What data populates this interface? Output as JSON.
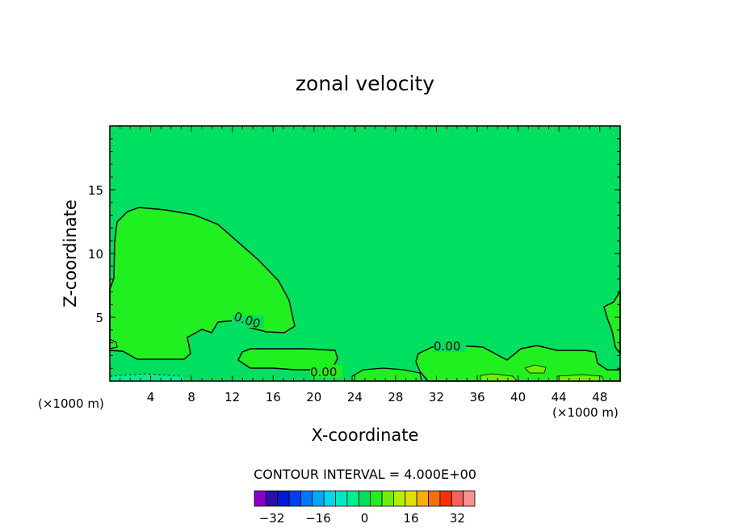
{
  "chart_data": {
    "type": "contour",
    "title": "zonal velocity",
    "xlabel": "X-coordinate",
    "ylabel": "Z-coordinate",
    "x_unit": "(×1000 m)",
    "y_unit": "(×1000 m)",
    "xlim": [
      0,
      50
    ],
    "ylim": [
      0,
      20
    ],
    "x_ticks": [
      4,
      8,
      12,
      16,
      20,
      24,
      28,
      32,
      36,
      40,
      44,
      48
    ],
    "y_ticks": [
      5,
      10,
      15
    ],
    "contour_labels": [
      "0.00",
      "0.00",
      "0.00"
    ],
    "contour_interval_text": "CONTOUR INTERVAL = 4.000E+00",
    "colorbar": {
      "tick_values": [
        -32,
        -16,
        0,
        16,
        32
      ],
      "tick_labels": [
        "−32",
        "−16",
        "0",
        "16",
        "32"
      ],
      "levels": [
        -36,
        -32,
        -28,
        -24,
        -20,
        -16,
        -12,
        -8,
        -4,
        0,
        4,
        8,
        12,
        16,
        20,
        24,
        28,
        32,
        36
      ],
      "colors": [
        "#8a00c8",
        "#2a10a8",
        "#0018d8",
        "#0040f0",
        "#0078f8",
        "#00a8f8",
        "#00d8f0",
        "#00e8c0",
        "#00f090",
        "#00e060",
        "#20f020",
        "#70f000",
        "#b0f000",
        "#e0e000",
        "#f8b000",
        "#f87000",
        "#f83000",
        "#f86060",
        "#f89090"
      ]
    },
    "field_colors": {
      "background": "#00e060",
      "positive_region": "#20f020",
      "weak_positive": "#70f000",
      "weak_negative": "#00f090"
    }
  }
}
